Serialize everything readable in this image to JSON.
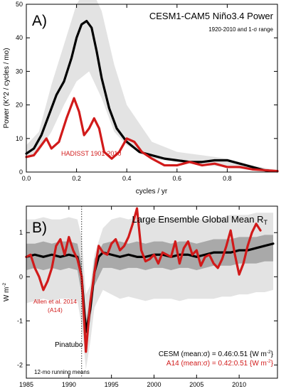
{
  "chart_data": [
    {
      "type": "line",
      "panel_label": "A)",
      "title": "CESM1-CAM5 Niño3.4 Power",
      "subtitle": "1920-2010 and 1-σ range",
      "xlabel": "cycles / yr",
      "ylabel": "Power (K^2 / cycles / mo)",
      "xlim": [
        0,
        1.0
      ],
      "ylim": [
        0,
        50
      ],
      "xticks": [
        0.0,
        0.2,
        0.4,
        0.6,
        0.8
      ],
      "xtick_labels": [
        "0.0",
        "0.2",
        "0.4",
        "0.6",
        "0.8"
      ],
      "yticks": [
        0,
        10,
        20,
        30,
        40,
        50
      ],
      "ytick_labels": [
        "0",
        "10",
        "20",
        "30",
        "40",
        "50"
      ],
      "grid": false,
      "annotations": [
        {
          "text": "HADISST 1901-2010",
          "color": "#d11a1a"
        }
      ],
      "series": [
        {
          "role": "1-sigma range",
          "style": "band",
          "color": "#e3e3e3",
          "x": [
            0.0,
            0.05,
            0.1,
            0.15,
            0.2,
            0.25,
            0.3,
            0.35,
            0.4,
            0.5,
            0.6,
            0.7,
            0.8,
            0.9,
            1.0
          ],
          "lower": [
            4,
            6,
            12,
            20,
            27,
            30,
            22,
            12,
            8,
            4,
            3,
            2,
            1.5,
            0.5,
            0
          ],
          "upper": [
            8,
            12,
            26,
            38,
            50,
            56,
            48,
            32,
            20,
            9,
            6,
            5,
            4,
            2,
            0.5
          ]
        },
        {
          "style": "line",
          "color": "#000000",
          "x": [
            0.0,
            0.03,
            0.06,
            0.09,
            0.12,
            0.15,
            0.18,
            0.2,
            0.22,
            0.24,
            0.26,
            0.28,
            0.3,
            0.33,
            0.36,
            0.4,
            0.45,
            0.5,
            0.55,
            0.6,
            0.65,
            0.7,
            0.75,
            0.8,
            0.85,
            0.9,
            0.95,
            1.0
          ],
          "y": [
            5.5,
            7,
            11,
            17,
            23,
            27,
            34,
            40,
            44,
            45,
            43,
            36,
            28,
            19,
            13,
            9,
            6,
            5,
            4,
            3.5,
            3,
            3,
            3.5,
            3.5,
            2.5,
            1.5,
            0.5,
            0.2
          ]
        },
        {
          "style": "line",
          "color": "#d11a1a",
          "x": [
            0.0,
            0.03,
            0.06,
            0.08,
            0.1,
            0.13,
            0.16,
            0.19,
            0.21,
            0.23,
            0.25,
            0.27,
            0.29,
            0.31,
            0.34,
            0.37,
            0.4,
            0.43,
            0.46,
            0.5,
            0.55,
            0.6,
            0.65,
            0.7,
            0.75,
            0.8,
            0.85,
            0.9,
            1.0
          ],
          "y": [
            4.5,
            5,
            8,
            10,
            7,
            9,
            16,
            22,
            18,
            11,
            13,
            16,
            13,
            6,
            4,
            6,
            10,
            9,
            6,
            4,
            2,
            2,
            3,
            2,
            2.5,
            1.5,
            1.5,
            0.8,
            0.3
          ]
        }
      ]
    },
    {
      "type": "line",
      "panel_label": "B)",
      "title": "Large Ensemble Global Mean R",
      "title_sub": "T",
      "ylabel": "W m",
      "ylabel_sup": "-2",
      "xlim": [
        1985,
        2014.5
      ],
      "ylim": [
        -2.3,
        1.6
      ],
      "xticks": [
        1985,
        1990,
        1995,
        2000,
        2005,
        2010
      ],
      "xtick_labels": [
        "1985",
        "1990",
        "1995",
        "2000",
        "2005",
        "2010"
      ],
      "yticks": [
        -2,
        -1,
        0,
        1
      ],
      "ytick_labels": [
        "-2",
        "-1",
        "0",
        "1"
      ],
      "grid": false,
      "reference_line": {
        "x": 1991.5,
        "style": "dotted"
      },
      "annotations": [
        {
          "text": "Allen et al. 2014",
          "color": "#d11a1a"
        },
        {
          "text": "(A14)",
          "color": "#d11a1a"
        },
        {
          "text": "Pinatubo",
          "color": "#000000"
        },
        {
          "text": "12-mo running means",
          "color": "#000000"
        },
        {
          "text": "CESM (mean:σ) = 0.46:0.51 {W m",
          "text_sup": "-2",
          "text_end": "}",
          "color": "#000000"
        },
        {
          "text": "A14 (mean:σ) = 0.42:0.51 {W m",
          "text_sup": "-2",
          "text_end": "}",
          "color": "#d11a1a"
        }
      ],
      "series": [
        {
          "role": "outer range",
          "style": "band",
          "color": "#e3e3e3",
          "x": [
            1985,
            1986,
            1987,
            1988,
            1989,
            1990,
            1991,
            1991.5,
            1992,
            1992.5,
            1993,
            1994,
            1995,
            1996,
            1997,
            1998,
            1999,
            2000,
            2001,
            2002,
            2003,
            2004,
            2005,
            2006,
            2007,
            2008,
            2009,
            2010,
            2011,
            2012,
            2013,
            2014
          ],
          "lower": [
            -0.6,
            -0.55,
            -0.5,
            -0.55,
            -0.5,
            -0.5,
            -0.55,
            -1.1,
            -2.1,
            -1.5,
            -0.7,
            -0.3,
            -0.4,
            -0.5,
            -0.45,
            -0.5,
            -0.55,
            -0.5,
            -0.5,
            -0.5,
            -0.55,
            -0.5,
            -0.5,
            -0.5,
            -0.5,
            -0.45,
            -0.45,
            -0.4,
            -0.4,
            -0.35,
            -0.35,
            -0.3
          ],
          "upper": [
            1.3,
            1.3,
            1.35,
            1.3,
            1.3,
            1.35,
            1.3,
            0.9,
            -0.4,
            -0.2,
            0.5,
            1.1,
            1.3,
            1.35,
            1.3,
            1.35,
            1.3,
            1.3,
            1.35,
            1.3,
            1.3,
            1.35,
            1.3,
            1.3,
            1.35,
            1.35,
            1.4,
            1.4,
            1.4,
            1.45,
            1.45,
            1.45
          ]
        },
        {
          "role": "inner range",
          "style": "band",
          "color": "#a9a9a9",
          "x": [
            1985,
            1986,
            1987,
            1988,
            1989,
            1990,
            1991,
            1991.5,
            1992,
            1992.5,
            1993,
            1994,
            1995,
            1996,
            1997,
            1998,
            1999,
            2000,
            2001,
            2002,
            2003,
            2004,
            2005,
            2006,
            2007,
            2008,
            2009,
            2010,
            2011,
            2012,
            2013,
            2014
          ],
          "lower": [
            0.15,
            0.2,
            0.15,
            0.2,
            0.15,
            0.2,
            0.15,
            -0.4,
            -1.5,
            -1.0,
            -0.2,
            0.2,
            0.2,
            0.15,
            0.2,
            0.2,
            0.15,
            0.2,
            0.2,
            0.15,
            0.2,
            0.2,
            0.15,
            0.2,
            0.25,
            0.25,
            0.25,
            0.3,
            0.3,
            0.3,
            0.35,
            0.35
          ],
          "upper": [
            0.75,
            0.75,
            0.8,
            0.75,
            0.8,
            0.8,
            0.75,
            0.3,
            -1.0,
            -0.5,
            0.4,
            0.75,
            0.8,
            0.8,
            0.75,
            0.8,
            0.75,
            0.8,
            0.8,
            0.75,
            0.8,
            0.8,
            0.75,
            0.8,
            0.85,
            0.85,
            0.85,
            0.9,
            0.9,
            0.9,
            0.95,
            0.95
          ]
        },
        {
          "style": "line",
          "color": "#000000",
          "x": [
            1985,
            1986,
            1987,
            1988,
            1989,
            1990,
            1991,
            1991.5,
            1992,
            1992.5,
            1993,
            1993.5,
            1994,
            1995,
            1996,
            1997,
            1998,
            1999,
            2000,
            2001,
            2002,
            2003,
            2004,
            2005,
            2006,
            2007,
            2008,
            2009,
            2010,
            2011,
            2012,
            2013,
            2014
          ],
          "y": [
            0.45,
            0.5,
            0.45,
            0.5,
            0.45,
            0.5,
            0.45,
            0.0,
            -1.25,
            -0.75,
            0.1,
            0.45,
            0.55,
            0.5,
            0.45,
            0.5,
            0.45,
            0.45,
            0.5,
            0.5,
            0.45,
            0.5,
            0.5,
            0.45,
            0.5,
            0.55,
            0.55,
            0.55,
            0.6,
            0.6,
            0.65,
            0.7,
            0.75
          ]
        },
        {
          "style": "line",
          "color": "#d11a1a",
          "x": [
            1985,
            1985.5,
            1986,
            1986.5,
            1987,
            1987.5,
            1988,
            1988.5,
            1989,
            1989.5,
            1990,
            1990.5,
            1991,
            1991.5,
            1992,
            1992.5,
            1993,
            1993.5,
            1994,
            1994.5,
            1995,
            1995.5,
            1996,
            1996.5,
            1997,
            1997.5,
            1998,
            1998.5,
            1999,
            1999.5,
            2000,
            2000.5,
            2001,
            2001.5,
            2002,
            2002.5,
            2003,
            2003.5,
            2004,
            2004.5,
            2005,
            2005.5,
            2006,
            2006.5,
            2007,
            2007.5,
            2008,
            2008.5,
            2009,
            2009.5,
            2010,
            2010.5,
            2011,
            2011.5,
            2012,
            2012.5
          ],
          "y": [
            0.45,
            0.5,
            0.2,
            0.0,
            -0.3,
            -0.1,
            0.2,
            0.7,
            0.85,
            0.5,
            0.9,
            0.6,
            0.4,
            0.0,
            -1.7,
            -0.6,
            0.1,
            0.7,
            0.55,
            0.5,
            0.75,
            0.85,
            0.6,
            0.7,
            0.9,
            1.2,
            1.55,
            0.6,
            0.35,
            0.4,
            0.5,
            0.3,
            0.55,
            0.5,
            0.45,
            0.8,
            0.3,
            0.65,
            0.8,
            0.5,
            0.6,
            0.25,
            0.45,
            0.5,
            0.3,
            0.2,
            0.4,
            0.7,
            1.05,
            0.5,
            0.05,
            0.3,
            0.7,
            1.0,
            1.2,
            1.05
          ]
        }
      ]
    }
  ]
}
